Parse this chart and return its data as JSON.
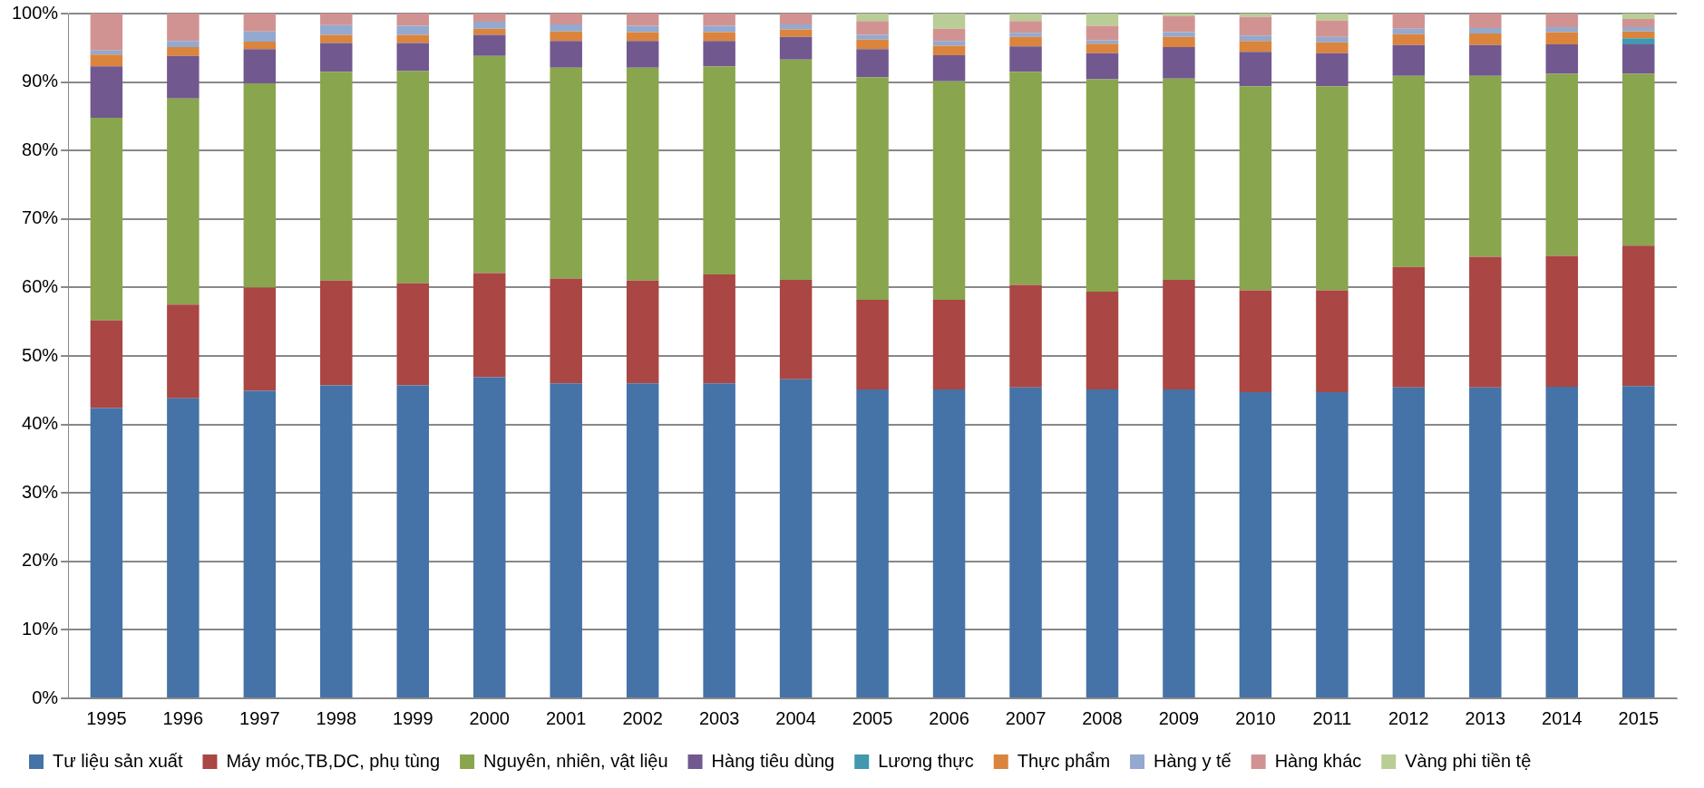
{
  "chart_data": {
    "type": "bar",
    "stacked": true,
    "categories": [
      "1995",
      "1996",
      "1997",
      "1998",
      "1999",
      "2000",
      "2001",
      "2002",
      "2003",
      "2004",
      "2005",
      "2006",
      "2007",
      "2008",
      "2009",
      "2010",
      "2011",
      "2012",
      "2013",
      "2014",
      "2015"
    ],
    "series": [
      {
        "name": "Tư liệu sản xuất",
        "color": "#4572a7",
        "values": [
          42.4,
          43.8,
          44.9,
          45.7,
          45.7,
          46.9,
          46.0,
          46.0,
          46.0,
          46.6,
          45.1,
          45.1,
          45.4,
          45.1,
          45.1,
          44.7,
          44.7,
          45.4,
          45.4,
          45.5,
          45.6
        ]
      },
      {
        "name": "Máy móc,TB,DC, phụ tùng",
        "color": "#aa4643",
        "values": [
          12.8,
          13.7,
          15.1,
          15.3,
          14.9,
          15.2,
          15.3,
          15.0,
          15.9,
          14.5,
          13.1,
          13.1,
          15.0,
          14.3,
          16.0,
          14.9,
          14.9,
          17.6,
          19.1,
          19.1,
          20.5
        ]
      },
      {
        "name": "Nguyên, nhiên, vật liệu",
        "color": "#89a54e",
        "values": [
          29.6,
          30.1,
          29.8,
          30.5,
          31.0,
          31.7,
          30.8,
          31.1,
          30.4,
          32.2,
          32.5,
          31.9,
          31.1,
          31.0,
          29.4,
          29.8,
          29.8,
          27.9,
          26.4,
          26.6,
          25.1
        ]
      },
      {
        "name": "Hàng tiêu dùng",
        "color": "#71588f",
        "values": [
          7.5,
          6.2,
          5.0,
          4.2,
          4.1,
          3.1,
          3.9,
          3.9,
          3.7,
          3.3,
          4.1,
          3.8,
          3.7,
          3.8,
          4.6,
          5.0,
          4.8,
          4.5,
          4.5,
          4.3,
          4.3
        ]
      },
      {
        "name": "Lương thực",
        "color": "#4198af",
        "values": [
          0,
          0,
          0,
          0,
          0,
          0,
          0,
          0,
          0,
          0,
          0,
          0,
          0,
          0,
          0,
          0,
          0,
          0,
          0,
          0,
          0.9
        ]
      },
      {
        "name": "Thực phẩm",
        "color": "#db843d",
        "values": [
          1.7,
          1.3,
          1.1,
          1.2,
          1.2,
          0.9,
          1.4,
          1.3,
          1.3,
          1.1,
          1.4,
          1.4,
          1.4,
          1.4,
          1.5,
          1.6,
          1.6,
          1.6,
          1.7,
          1.8,
          1.0
        ]
      },
      {
        "name": "Hàng y tế",
        "color": "#93a9cf",
        "values": [
          0.6,
          0.9,
          1.5,
          1.4,
          1.3,
          1.0,
          1.0,
          0.9,
          0.9,
          0.7,
          0.7,
          0.7,
          0.6,
          0.5,
          0.7,
          0.8,
          0.8,
          0.8,
          0.8,
          0.7,
          0.6
        ]
      },
      {
        "name": "Hàng khác",
        "color": "#d19392",
        "values": [
          5.4,
          4.0,
          2.6,
          1.7,
          1.8,
          1.2,
          1.6,
          1.8,
          1.8,
          1.6,
          2.0,
          1.8,
          1.7,
          2.1,
          2.3,
          2.7,
          2.4,
          2.2,
          2.1,
          2.0,
          1.2
        ]
      },
      {
        "name": "Vàng phi tiền tệ",
        "color": "#b9cd96",
        "values": [
          0,
          0,
          0,
          0,
          0,
          0,
          0,
          0,
          0,
          0,
          1.1,
          2.2,
          1.1,
          1.8,
          0.4,
          0.5,
          1.0,
          0,
          0,
          0,
          0.8
        ]
      }
    ],
    "ylim": [
      0,
      100
    ],
    "yticks": [
      {
        "value": 0,
        "label": "0%"
      },
      {
        "value": 10,
        "label": "10%"
      },
      {
        "value": 20,
        "label": "20%"
      },
      {
        "value": 30,
        "label": "30%"
      },
      {
        "value": 40,
        "label": "40%"
      },
      {
        "value": 50,
        "label": "50%"
      },
      {
        "value": 60,
        "label": "60%"
      },
      {
        "value": 70,
        "label": "70%"
      },
      {
        "value": 80,
        "label": "80%"
      },
      {
        "value": 90,
        "label": "90%"
      },
      {
        "value": 100,
        "label": "100%"
      }
    ],
    "grid": "y",
    "legend": "bottom"
  }
}
